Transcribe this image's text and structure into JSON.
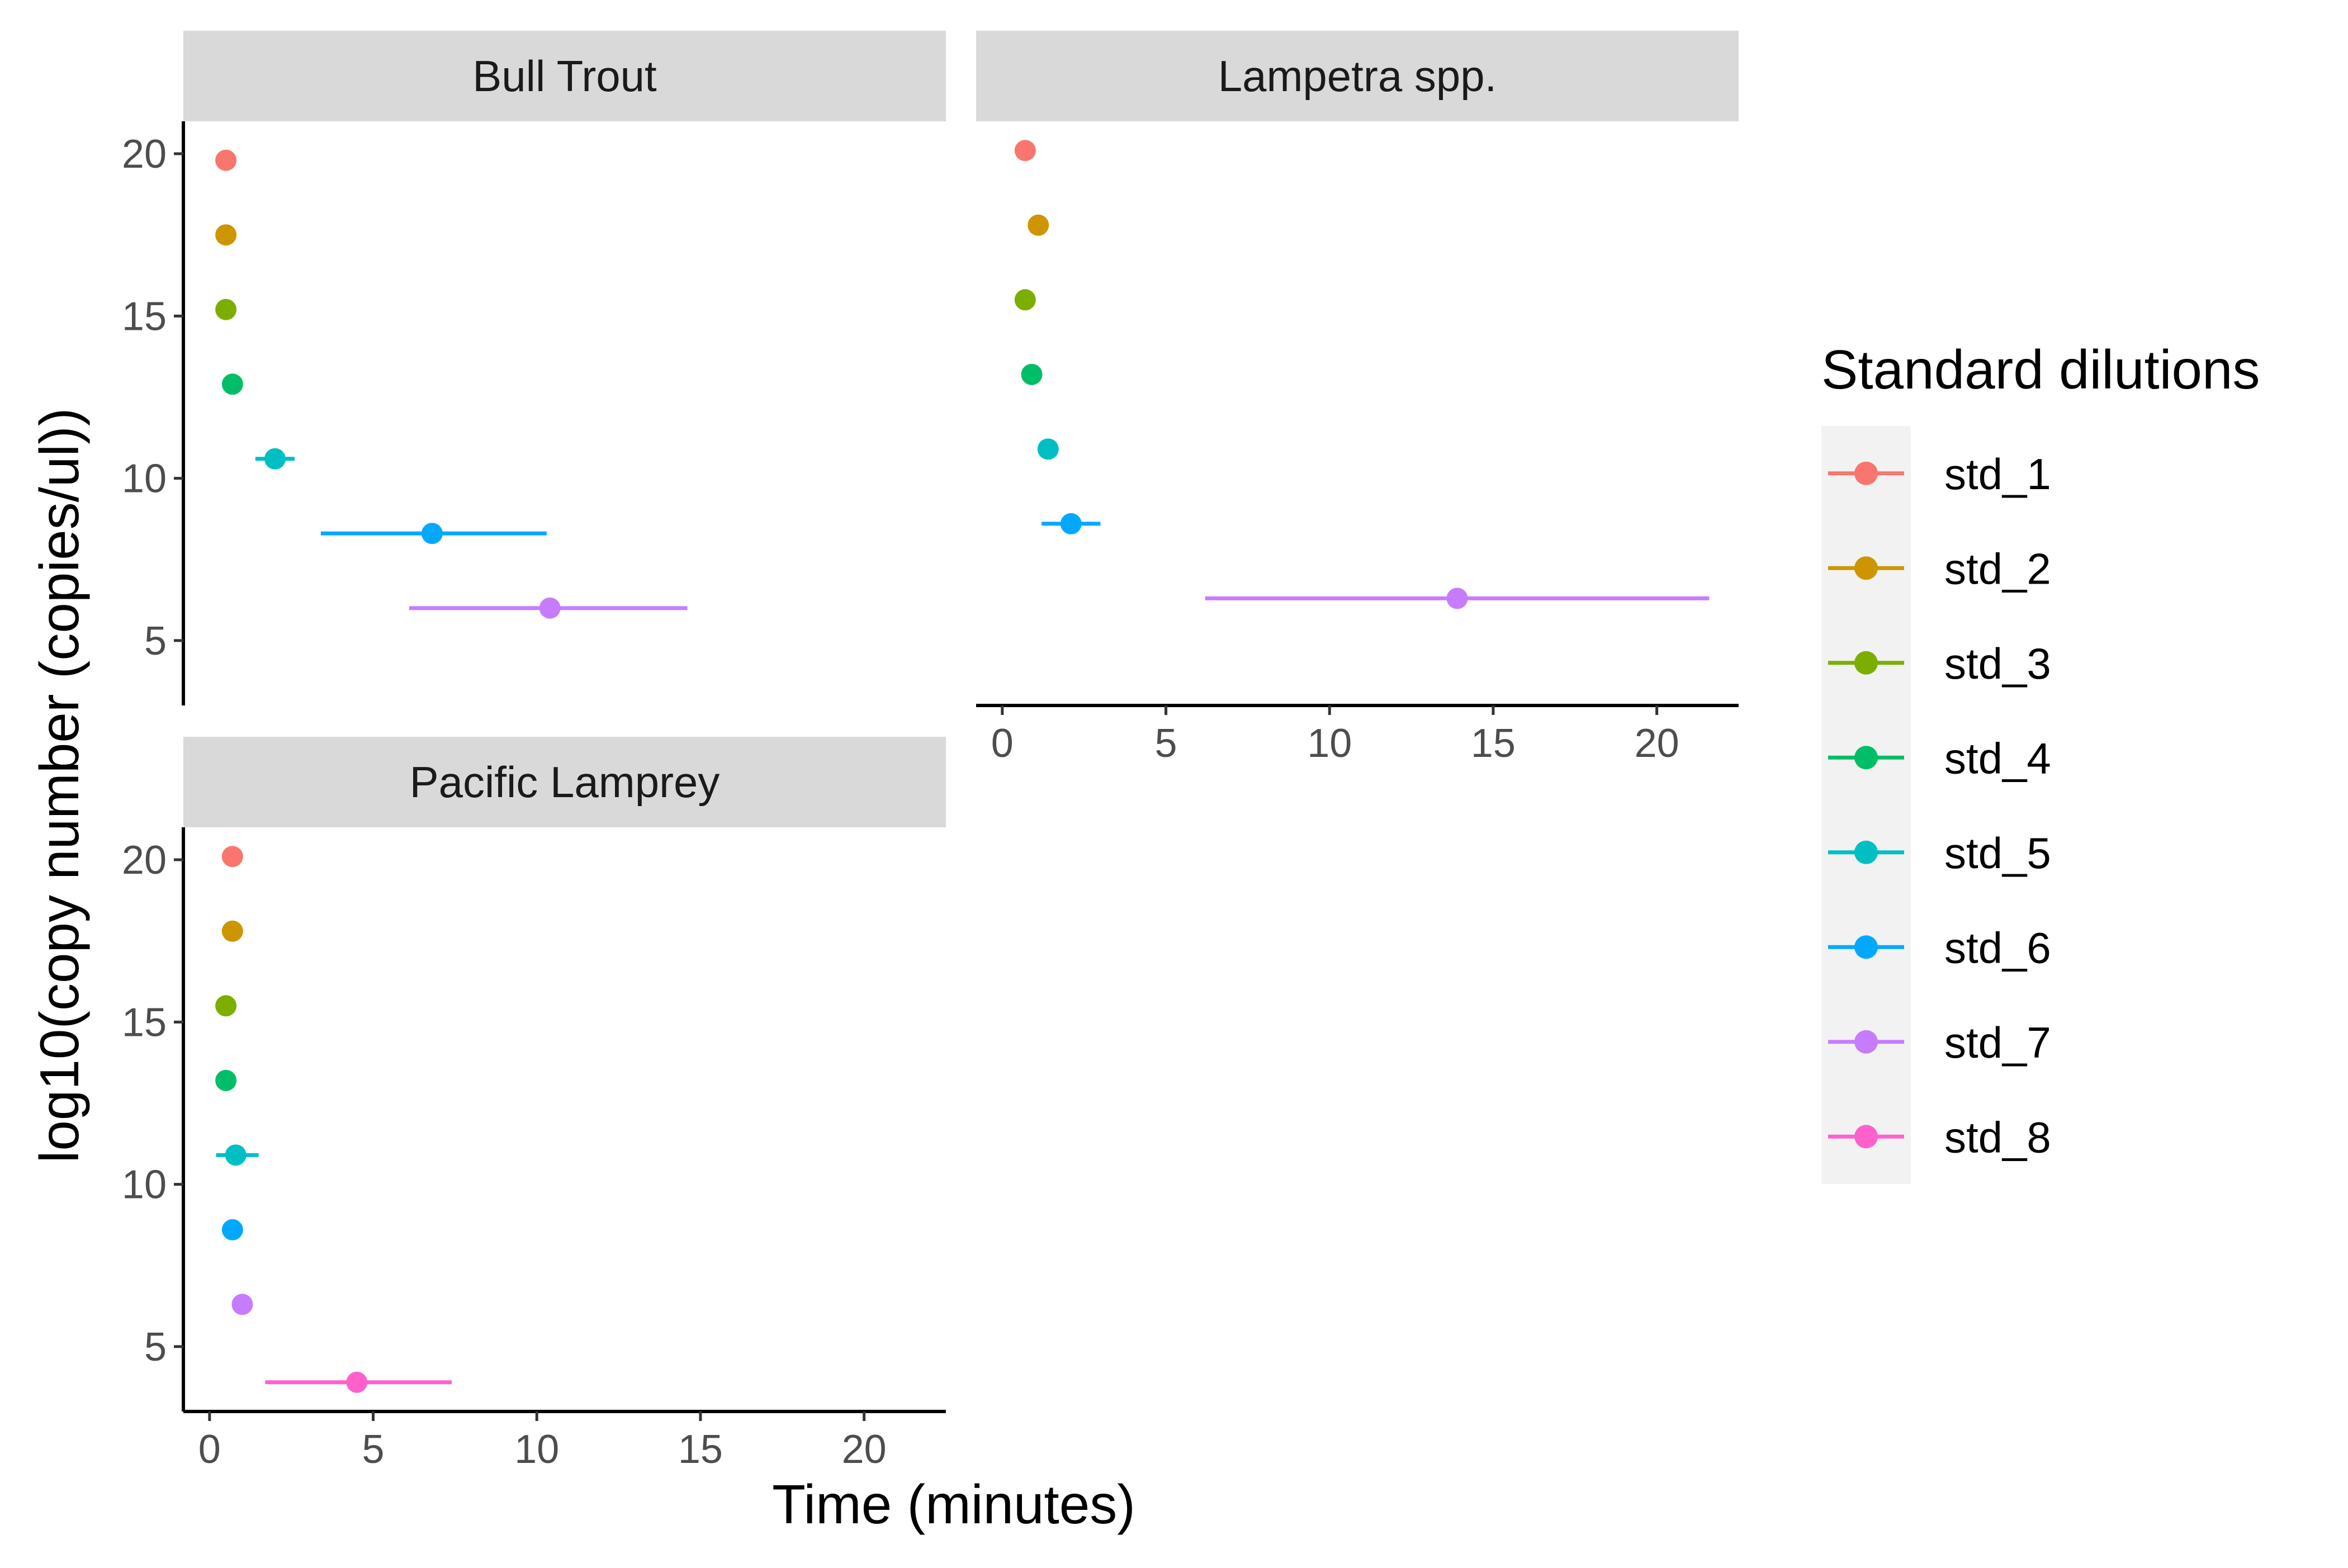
{
  "chart_data": {
    "type": "scatter",
    "subtype": "point-range (mean with horizontal error bars), faceted",
    "x_label": "Time (minutes)",
    "y_label": "log10(copy number (copies/ul))",
    "x_ticks": [
      0,
      5,
      10,
      15,
      20
    ],
    "y_ticks": [
      5,
      10,
      15,
      20
    ],
    "x_range": [
      -0.8,
      22.5
    ],
    "y_range": [
      3.0,
      21.0
    ],
    "grid": false,
    "legend": {
      "title": "Standard dilutions",
      "position": "right",
      "background": "#f2f2f2",
      "items": [
        {
          "label": "std_1",
          "color": "#F8766D"
        },
        {
          "label": "std_2",
          "color": "#CD9600"
        },
        {
          "label": "std_3",
          "color": "#7CAE00"
        },
        {
          "label": "std_4",
          "color": "#00BE67"
        },
        {
          "label": "std_5",
          "color": "#00BFC4"
        },
        {
          "label": "std_6",
          "color": "#00A9FF"
        },
        {
          "label": "std_7",
          "color": "#C77CFF"
        },
        {
          "label": "std_8",
          "color": "#FF61CC"
        }
      ]
    },
    "facets": [
      {
        "title": "Bull Trout",
        "points": [
          {
            "series": "std_1",
            "x": 0.5,
            "y": 19.8,
            "xmin": 0.5,
            "xmax": 0.5
          },
          {
            "series": "std_2",
            "x": 0.5,
            "y": 17.5,
            "xmin": 0.5,
            "xmax": 0.5
          },
          {
            "series": "std_3",
            "x": 0.5,
            "y": 15.2,
            "xmin": 0.5,
            "xmax": 0.5
          },
          {
            "series": "std_4",
            "x": 0.7,
            "y": 12.9,
            "xmin": 0.7,
            "xmax": 0.7
          },
          {
            "series": "std_5",
            "x": 2.0,
            "y": 10.6,
            "xmin": 1.4,
            "xmax": 2.6
          },
          {
            "series": "std_6",
            "x": 6.8,
            "y": 8.3,
            "xmin": 3.4,
            "xmax": 10.3
          },
          {
            "series": "std_7",
            "x": 10.4,
            "y": 6.0,
            "xmin": 6.1,
            "xmax": 14.6
          }
        ]
      },
      {
        "title": "Lampetra spp.",
        "points": [
          {
            "series": "std_1",
            "x": 0.7,
            "y": 20.1,
            "xmin": 0.7,
            "xmax": 0.7
          },
          {
            "series": "std_2",
            "x": 1.1,
            "y": 17.8,
            "xmin": 1.1,
            "xmax": 1.1
          },
          {
            "series": "std_3",
            "x": 0.7,
            "y": 15.5,
            "xmin": 0.7,
            "xmax": 0.7
          },
          {
            "series": "std_4",
            "x": 0.9,
            "y": 13.2,
            "xmin": 0.9,
            "xmax": 0.9
          },
          {
            "series": "std_5",
            "x": 1.4,
            "y": 10.9,
            "xmin": 1.4,
            "xmax": 1.4
          },
          {
            "series": "std_6",
            "x": 2.1,
            "y": 8.6,
            "xmin": 1.2,
            "xmax": 3.0
          },
          {
            "series": "std_7",
            "x": 13.9,
            "y": 6.3,
            "xmin": 6.2,
            "xmax": 21.6
          }
        ]
      },
      {
        "title": "Pacific Lamprey",
        "points": [
          {
            "series": "std_1",
            "x": 0.7,
            "y": 20.1,
            "xmin": 0.7,
            "xmax": 0.7
          },
          {
            "series": "std_2",
            "x": 0.7,
            "y": 17.8,
            "xmin": 0.7,
            "xmax": 0.7
          },
          {
            "series": "std_3",
            "x": 0.5,
            "y": 15.5,
            "xmin": 0.5,
            "xmax": 0.5
          },
          {
            "series": "std_4",
            "x": 0.5,
            "y": 13.2,
            "xmin": 0.5,
            "xmax": 0.5
          },
          {
            "series": "std_5",
            "x": 0.8,
            "y": 10.9,
            "xmin": 0.2,
            "xmax": 1.5
          },
          {
            "series": "std_6",
            "x": 0.7,
            "y": 8.6,
            "xmin": 0.7,
            "xmax": 0.7
          },
          {
            "series": "std_7",
            "x": 1.0,
            "y": 6.3,
            "xmin": 1.0,
            "xmax": 1.0
          },
          {
            "series": "std_8",
            "x": 4.5,
            "y": 3.9,
            "xmin": 1.7,
            "xmax": 7.4
          }
        ]
      }
    ]
  }
}
